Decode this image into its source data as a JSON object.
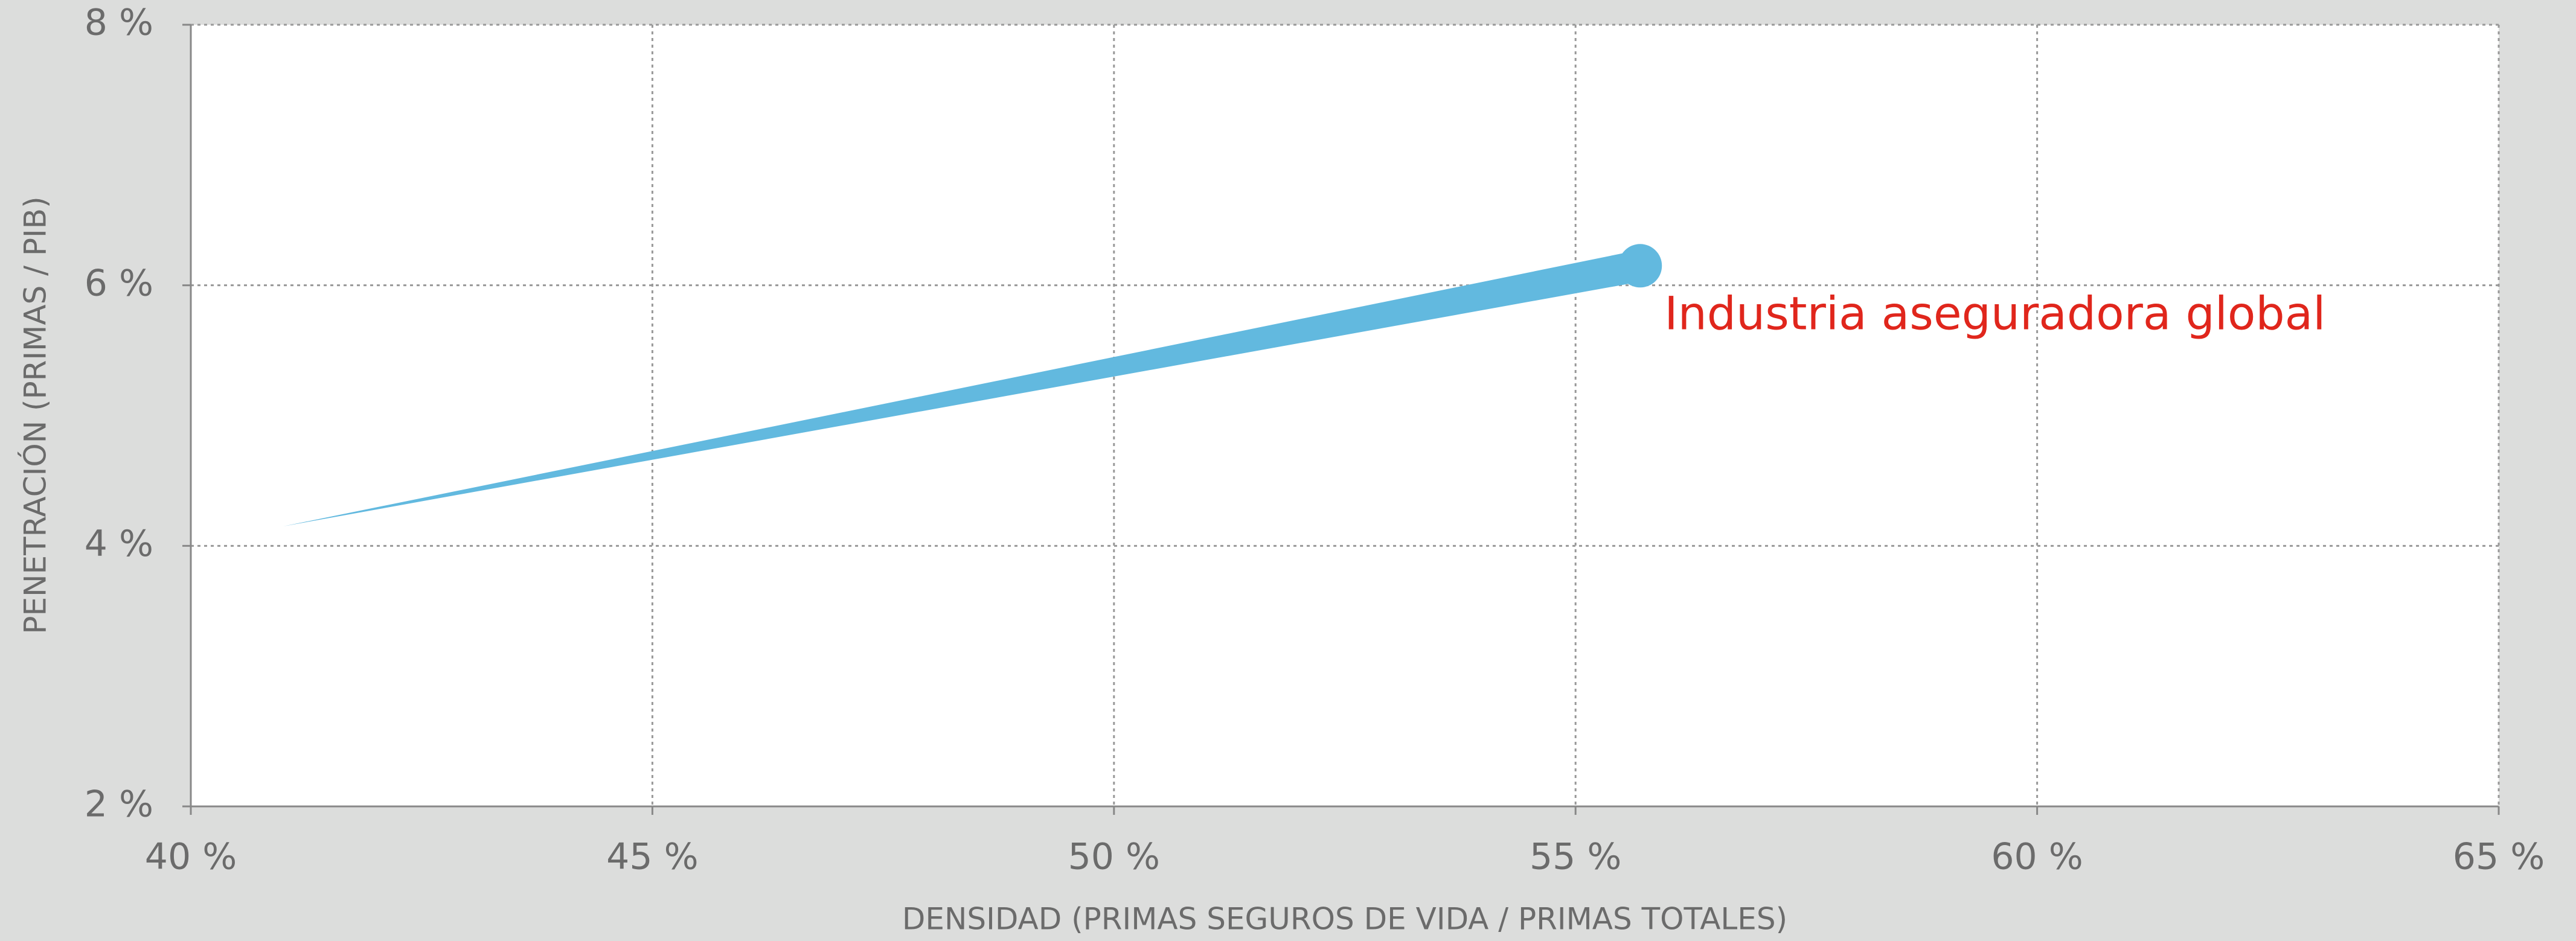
{
  "chart_data": {
    "type": "line",
    "x_label": "DENSIDAD (PRIMAS SEGUROS DE VIDA / PRIMAS TOTALES)",
    "y_label": "PENETRACIÓN (PRIMAS / PIB)",
    "annotation": "Industria aseguradora global",
    "annotation_color": "#e0261c",
    "series": [
      {
        "name": "Industria aseguradora global",
        "color": "#62b9df",
        "x": [
          41,
          55.7
        ],
        "values": [
          4.15,
          6.15
        ]
      }
    ],
    "xlim": [
      40,
      65
    ],
    "xticks": [
      {
        "value": 40,
        "label": "40 %"
      },
      {
        "value": 45,
        "label": "45 %"
      },
      {
        "value": 50,
        "label": "50 %"
      },
      {
        "value": 55,
        "label": "55 %"
      },
      {
        "value": 60,
        "label": "60 %"
      },
      {
        "value": 65,
        "label": "65 %"
      }
    ],
    "ylim": [
      2,
      8
    ],
    "yticks": [
      {
        "value": 2,
        "label": "2 %"
      },
      {
        "value": 4,
        "label": "4 %"
      },
      {
        "value": 6,
        "label": "6 %"
      },
      {
        "value": 8,
        "label": "8 %"
      }
    ],
    "grid": true
  }
}
